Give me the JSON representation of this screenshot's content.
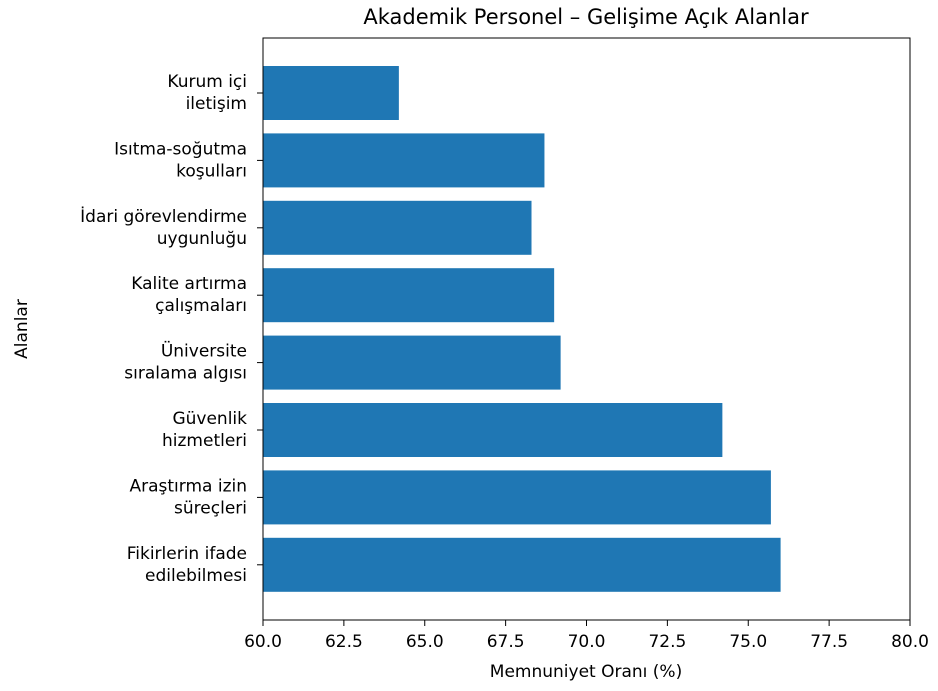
{
  "chart_data": {
    "type": "barh",
    "title": "Akademik Personel – Gelişime Açık Alanlar",
    "xlabel": "Memnuniyet Oranı (%)",
    "ylabel": "Alanlar",
    "categories": [
      "Kurum içi\niletişim",
      "Isıtma-soğutma\nkoşulları",
      "İdari görevlendirme\nuygunluğu",
      "Kalite artırma\nçalışmaları",
      "Üniversite\nsıralama algısı",
      "Güvenlik\nhizmetleri",
      "Araştırma izin\nsüreçleri",
      "Fikirlerin ifade\nedilebilmesi"
    ],
    "values": [
      64.2,
      68.7,
      68.3,
      69.0,
      69.2,
      74.2,
      75.7,
      76.0
    ],
    "color": "#1f77b4",
    "xlim": [
      60,
      80
    ],
    "xticks": [
      {
        "value": 60,
        "label": "60.0"
      },
      {
        "value": 62.5,
        "label": "62.5"
      },
      {
        "value": 65,
        "label": "65.0"
      },
      {
        "value": 67.5,
        "label": "67.5"
      },
      {
        "value": 70,
        "label": "70.0"
      },
      {
        "value": 72.5,
        "label": "72.5"
      },
      {
        "value": 75,
        "label": "75.0"
      },
      {
        "value": 77.5,
        "label": "77.5"
      },
      {
        "value": 80,
        "label": "80.0"
      }
    ],
    "grid": false
  }
}
